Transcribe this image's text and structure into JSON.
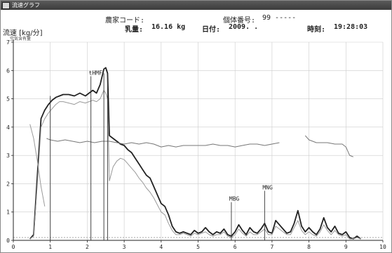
{
  "window": {
    "title": "流速グラフ"
  },
  "header": {
    "farm_code_label": "農家コード:",
    "individual_label": "個体番号:",
    "individual_value": "99 -----",
    "milk_label": "乳量:",
    "milk_value": "16.16 kg",
    "date_label": "日付:",
    "date_value": "2009. .",
    "time_label": "時刻:",
    "time_value": "19:28:03"
  },
  "colors": {
    "primary_line": "#222222",
    "secondary_line": "#9a9a9a",
    "air_line": "#777777",
    "grid": "#cccccc"
  },
  "chart_data": {
    "type": "line",
    "ylabel": "流速 [kg/分]",
    "ysub": "空気含有量",
    "xlim": [
      0,
      10
    ],
    "ylim": [
      0,
      7
    ],
    "x_ticks": [
      "0",
      "1",
      "2",
      "3",
      "4",
      "5",
      "6",
      "7",
      "8",
      "9",
      "10"
    ],
    "y_ticks": [
      "0",
      "1",
      "2",
      "3",
      "4",
      "5",
      "6",
      "7"
    ],
    "grid": true,
    "markers": [
      {
        "label": "",
        "x": 1.0,
        "top": 5.1
      },
      {
        "label": "tHMF",
        "x": 2.1,
        "top": 5.8
      },
      {
        "label": "",
        "x": 2.45,
        "top": 5.9
      },
      {
        "label": "",
        "x": 2.55,
        "top": 5.9
      },
      {
        "label": "MBG",
        "x": 5.9,
        "top": 1.35
      },
      {
        "label": "MNG",
        "x": 6.8,
        "top": 1.75
      }
    ],
    "series": [
      {
        "x": [
          0.45,
          0.55,
          0.65,
          0.75,
          0.85,
          0.95,
          1.05,
          1.15,
          1.25,
          1.35,
          1.5,
          1.65,
          1.8,
          1.95,
          2.05,
          2.15,
          2.25,
          2.35,
          2.45,
          2.5,
          2.55,
          2.6,
          2.7,
          2.8,
          2.9,
          3.0,
          3.1,
          3.2,
          3.3,
          3.4,
          3.5,
          3.6,
          3.7,
          3.8,
          3.9,
          4.0,
          4.1,
          4.2,
          4.3,
          4.4,
          4.5,
          4.6,
          4.7,
          4.8,
          4.9,
          5.0,
          5.1,
          5.2,
          5.3,
          5.4,
          5.5,
          5.6,
          5.7,
          5.8,
          5.9,
          6.0,
          6.1,
          6.2,
          6.3,
          6.4,
          6.5,
          6.6,
          6.7,
          6.8,
          6.9,
          7.0,
          7.1,
          7.2,
          7.3,
          7.4,
          7.5,
          7.6,
          7.7,
          7.8,
          7.9,
          8.0,
          8.1,
          8.2,
          8.3,
          8.4,
          8.5,
          8.6,
          8.7,
          8.8,
          8.9,
          9.0,
          9.1,
          9.2,
          9.3,
          9.4
        ],
        "values": [
          0.05,
          0.2,
          2.3,
          4.3,
          4.6,
          4.8,
          4.95,
          5.05,
          5.1,
          5.15,
          5.15,
          5.1,
          5.2,
          5.1,
          5.2,
          5.3,
          5.2,
          5.5,
          6.05,
          6.1,
          5.9,
          3.7,
          3.6,
          3.5,
          3.4,
          3.35,
          3.2,
          3.1,
          2.9,
          2.7,
          2.5,
          2.3,
          2.2,
          1.9,
          1.6,
          1.3,
          1.2,
          0.9,
          0.5,
          0.3,
          0.25,
          0.3,
          0.25,
          0.2,
          0.35,
          0.25,
          0.3,
          0.45,
          0.3,
          0.2,
          0.3,
          0.25,
          0.4,
          0.2,
          0.15,
          0.3,
          0.55,
          0.35,
          0.2,
          0.45,
          0.3,
          0.25,
          0.4,
          0.6,
          0.3,
          0.25,
          0.7,
          0.55,
          0.4,
          0.25,
          0.3,
          0.6,
          1.05,
          0.5,
          0.3,
          0.45,
          0.3,
          0.2,
          0.4,
          0.8,
          0.45,
          0.3,
          0.5,
          0.25,
          0.2,
          0.3,
          0.1,
          0.05,
          0.15,
          0.05
        ]
      },
      {
        "x": [
          0.45,
          0.55,
          0.65,
          0.75,
          0.85,
          0.95,
          1.05,
          1.15,
          1.25,
          1.35,
          1.5,
          1.65,
          1.8,
          1.95,
          2.05,
          2.15,
          2.25,
          2.35,
          2.45,
          2.5,
          2.55,
          2.6,
          2.7,
          2.8,
          2.9,
          3.0,
          3.1,
          3.2,
          3.3,
          3.4,
          3.5,
          3.6,
          3.7,
          3.8,
          3.9,
          4.0,
          4.1,
          4.2,
          4.3,
          4.4,
          4.5,
          4.6,
          4.7,
          4.8,
          4.9,
          5.0,
          5.1,
          5.2,
          5.3,
          5.4,
          5.5,
          5.6,
          5.7,
          5.8,
          5.9,
          6.0,
          6.1,
          6.2,
          6.3,
          6.4,
          6.5,
          6.6,
          6.7,
          6.8,
          6.9,
          7.0,
          7.1,
          7.2,
          7.3,
          7.4,
          7.5,
          7.6,
          7.7,
          7.8,
          7.9,
          8.0,
          8.1,
          8.2,
          8.3,
          8.4,
          8.5,
          8.6,
          8.7,
          8.8,
          8.9,
          9.0,
          9.1,
          9.2,
          9.3,
          9.4
        ],
        "values": [
          0.05,
          0.15,
          2.0,
          4.0,
          4.3,
          4.5,
          4.65,
          4.8,
          4.9,
          4.9,
          4.85,
          4.8,
          4.9,
          4.85,
          4.9,
          4.95,
          4.9,
          5.0,
          5.3,
          5.2,
          5.0,
          2.1,
          2.6,
          2.8,
          2.9,
          2.85,
          2.7,
          2.55,
          2.4,
          2.2,
          2.05,
          1.85,
          1.7,
          1.5,
          1.25,
          1.0,
          0.9,
          0.6,
          0.35,
          0.2,
          0.2,
          0.25,
          0.2,
          0.15,
          0.25,
          0.2,
          0.25,
          0.3,
          0.2,
          0.15,
          0.2,
          0.2,
          0.3,
          0.15,
          0.1,
          0.2,
          0.4,
          0.25,
          0.15,
          0.3,
          0.2,
          0.2,
          0.3,
          0.4,
          0.2,
          0.2,
          0.5,
          0.4,
          0.3,
          0.2,
          0.2,
          0.45,
          0.7,
          0.35,
          0.2,
          0.3,
          0.2,
          0.15,
          0.3,
          0.55,
          0.35,
          0.2,
          0.35,
          0.2,
          0.15,
          0.2,
          0.05,
          0.05,
          0.1,
          0.05
        ]
      },
      {
        "x": [
          0.9,
          1.0,
          1.2,
          1.4,
          1.6,
          1.8,
          2.0,
          2.2,
          2.4,
          2.6,
          2.8,
          3.0,
          3.2,
          3.4,
          3.6,
          3.8,
          4.0,
          4.2,
          4.4,
          4.6,
          4.8,
          5.0,
          5.2,
          5.4,
          5.6,
          5.8,
          6.0,
          6.2,
          6.4,
          6.6,
          6.8,
          7.0,
          7.2
        ],
        "values": [
          3.6,
          3.55,
          3.5,
          3.55,
          3.5,
          3.45,
          3.5,
          3.45,
          3.5,
          3.5,
          3.45,
          3.4,
          3.45,
          3.4,
          3.45,
          3.4,
          3.3,
          3.35,
          3.3,
          3.35,
          3.35,
          3.35,
          3.35,
          3.4,
          3.35,
          3.35,
          3.3,
          3.35,
          3.4,
          3.4,
          3.35,
          3.4,
          3.45
        ]
      },
      {
        "x": [
          0.45,
          0.55,
          0.65,
          0.75,
          0.85
        ],
        "values": [
          4.1,
          3.6,
          2.8,
          1.9,
          1.2
        ]
      },
      {
        "x": [
          7.9,
          8.0,
          8.1,
          8.2,
          8.3,
          8.5,
          8.7,
          8.9,
          9.0,
          9.1,
          9.2
        ],
        "values": [
          3.7,
          3.55,
          3.5,
          3.45,
          3.45,
          3.45,
          3.4,
          3.4,
          3.3,
          3.0,
          2.95
        ]
      }
    ]
  }
}
